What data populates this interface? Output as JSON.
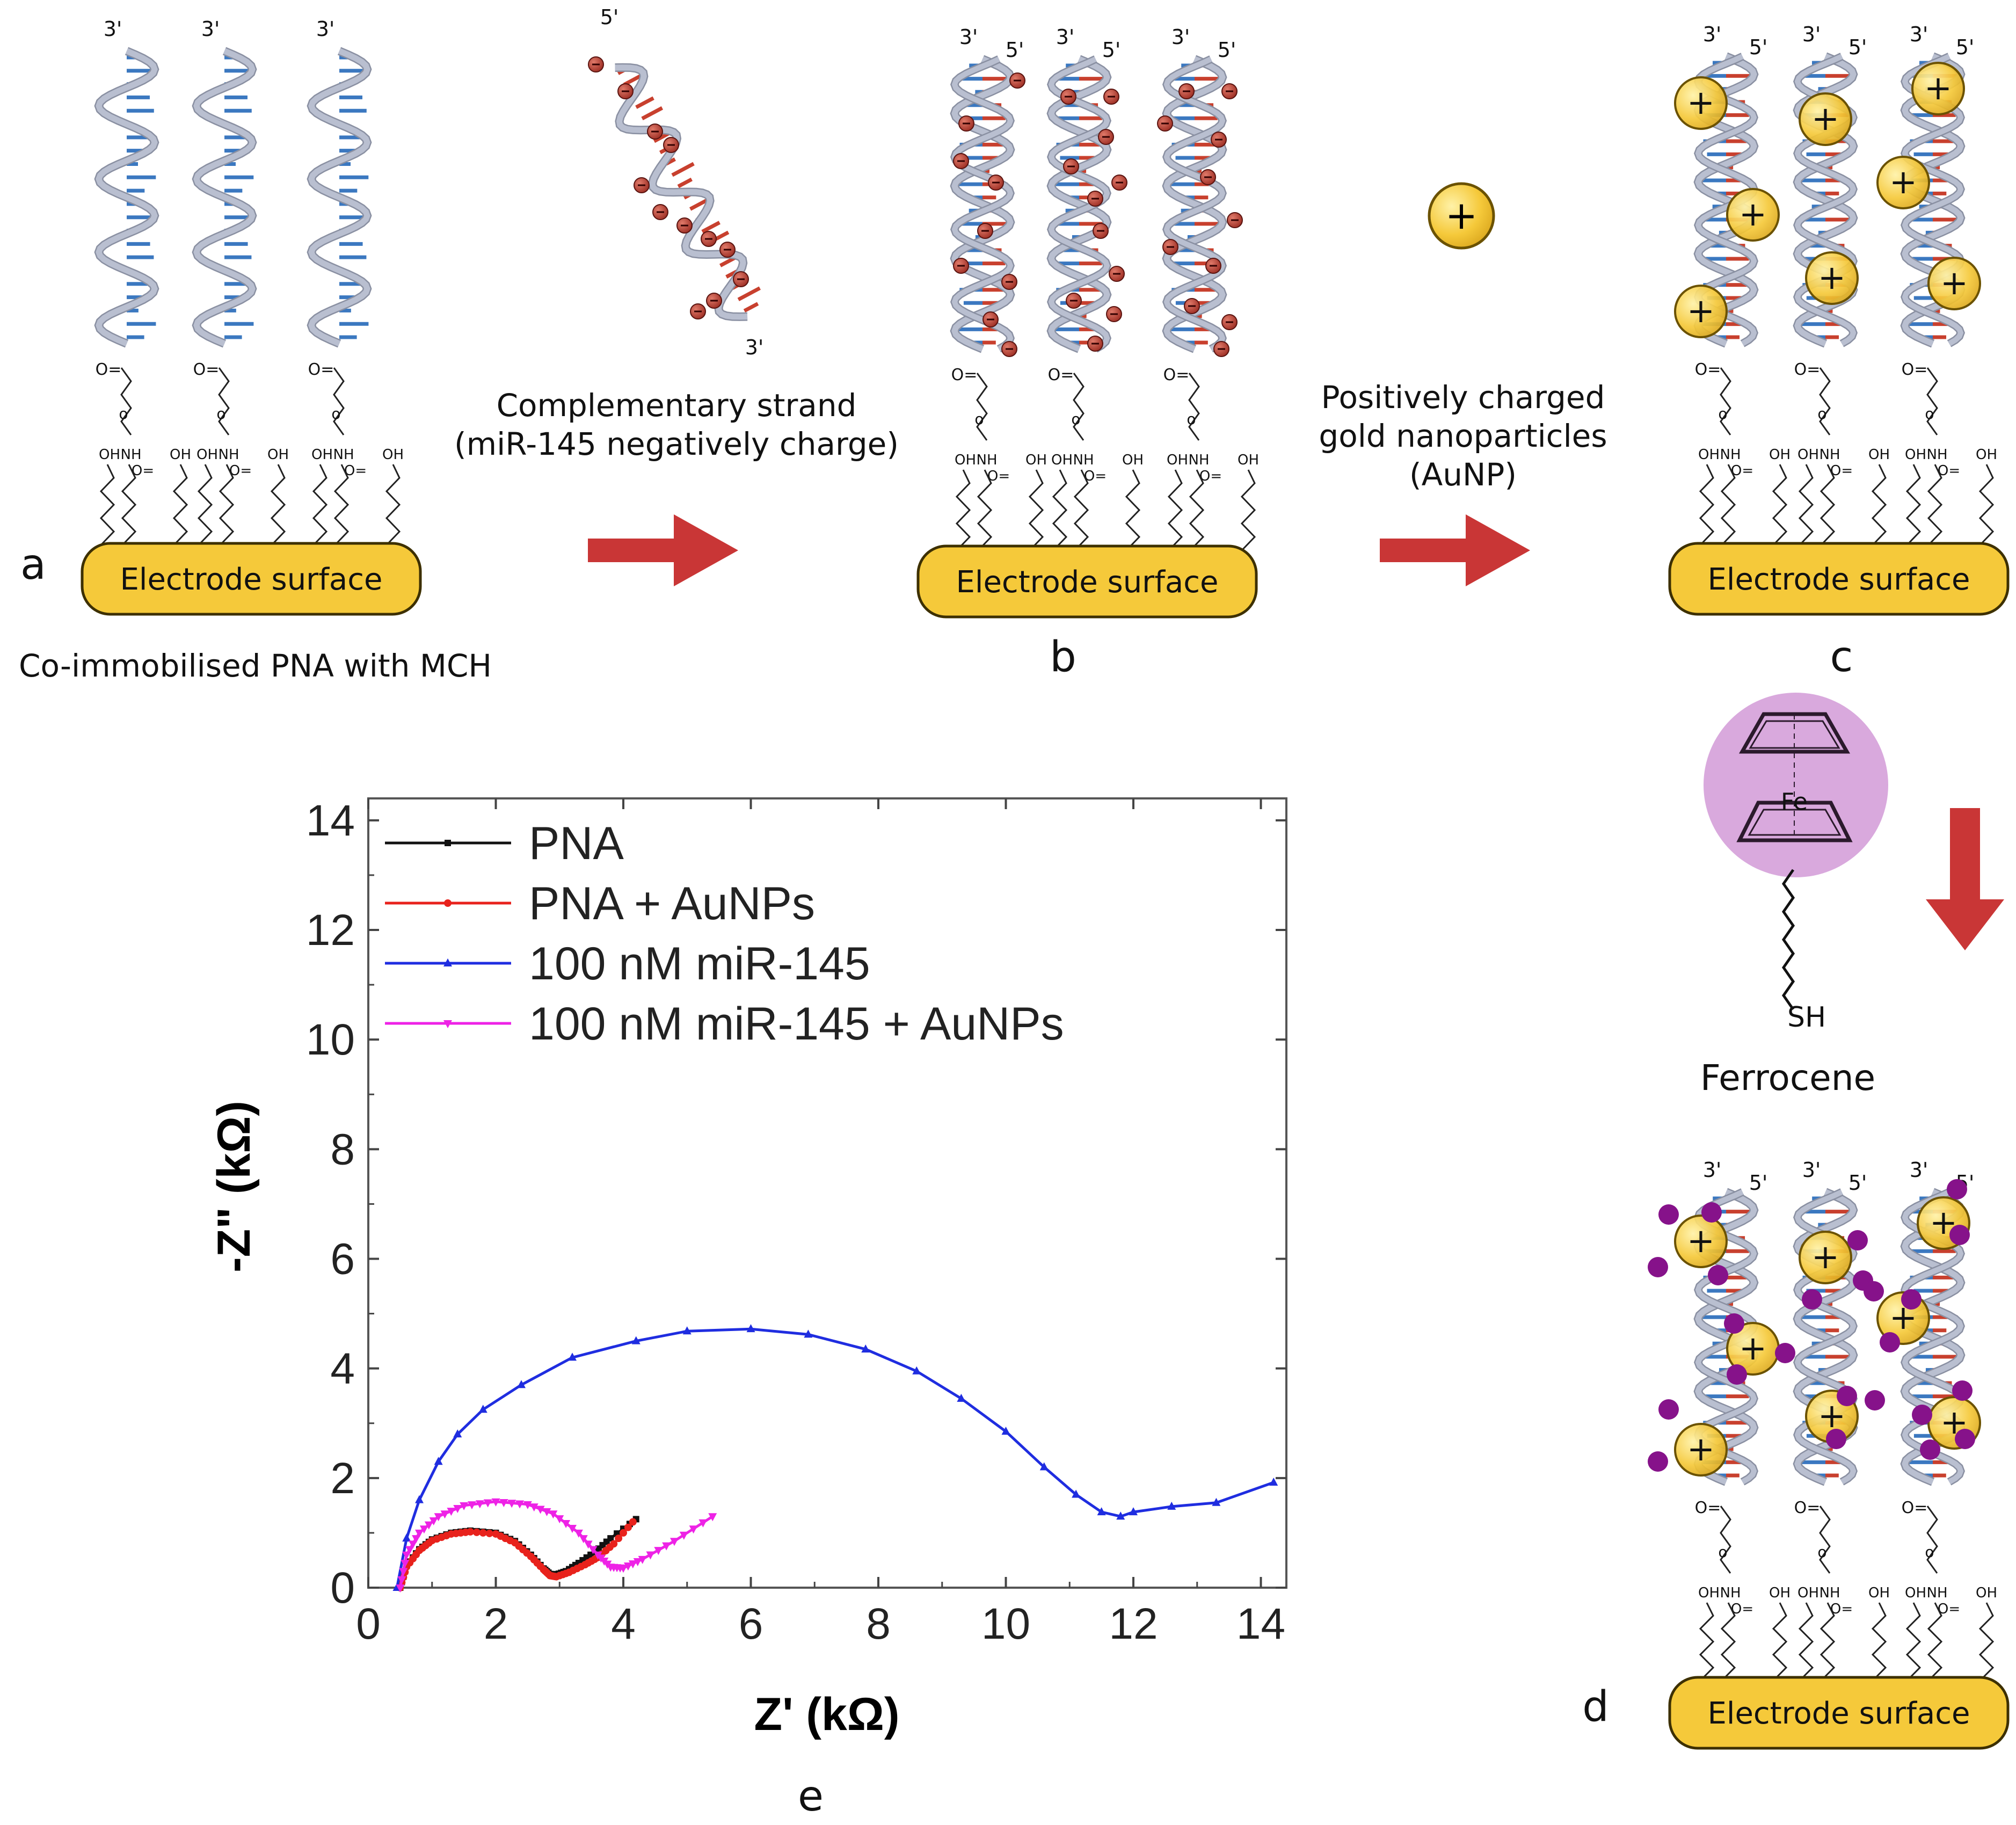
{
  "panels": {
    "a": {
      "letter": "a",
      "caption": "Co-immobilised PNA with MCH",
      "electrode": "Electrode surface"
    },
    "b": {
      "letter": "b",
      "electrode": "Electrode surface"
    },
    "c": {
      "letter": "c",
      "electrode": "Electrode surface"
    },
    "d": {
      "letter": "d",
      "electrode": "Electrode surface"
    },
    "e": {
      "letter": "e"
    }
  },
  "labels": {
    "three_prime": "3'",
    "five_prime": "5'",
    "oh": "OH",
    "nh": "NH",
    "carbonyl": "O="
  },
  "steps": {
    "complementary": {
      "line1": "Complementary strand",
      "line2": "(miR-145 negatively charge)"
    },
    "aunp": {
      "line1": "Positively charged",
      "line2": "gold nanoparticles",
      "line3": "(AuNP)"
    },
    "ferrocene": {
      "label": "Ferrocene",
      "fe": "Fe",
      "sh": "SH"
    }
  },
  "symbols": {
    "plus": "+",
    "minus": "−"
  },
  "colors": {
    "gold": "#f5c93a",
    "gold_edge": "#6b5200",
    "arrow": "#c93636",
    "negative_charge": "#b3372c",
    "ferrocene_dot": "#86128a",
    "ferrocene_halo": "#d9a9dd",
    "backbone": "#b9bfd0",
    "base_blue": "#3b78c0",
    "base_red": "#c8402e"
  },
  "chart_data": {
    "type": "line",
    "title": "",
    "xlabel": "Z' (kΩ)",
    "ylabel": "-Z\" (kΩ)",
    "xlim": [
      0,
      14.4
    ],
    "ylim": [
      0,
      14.4
    ],
    "xticks": [
      0,
      2,
      4,
      6,
      8,
      10,
      12,
      14
    ],
    "yticks": [
      0,
      2,
      4,
      6,
      8,
      10,
      12,
      14
    ],
    "legend_position": "top-left",
    "series": [
      {
        "name": "PNA",
        "color": "#111111",
        "marker": "square",
        "x": [
          0.5,
          0.6,
          0.8,
          1.0,
          1.3,
          1.6,
          2.0,
          2.3,
          2.55,
          2.75,
          2.85,
          2.95,
          3.1,
          3.3,
          3.55,
          3.8,
          4.2
        ],
        "y": [
          0.0,
          0.4,
          0.7,
          0.88,
          1.0,
          1.04,
          1.0,
          0.85,
          0.6,
          0.35,
          0.25,
          0.24,
          0.3,
          0.45,
          0.65,
          0.9,
          1.25
        ]
      },
      {
        "name": "PNA + AuNPs",
        "color": "#e8221c",
        "marker": "circle",
        "x": [
          0.5,
          0.6,
          0.8,
          1.0,
          1.3,
          1.6,
          2.0,
          2.3,
          2.55,
          2.75,
          2.85,
          2.95,
          3.15,
          3.4,
          3.6,
          3.85,
          4.15
        ],
        "y": [
          0.0,
          0.38,
          0.68,
          0.86,
          0.98,
          1.02,
          0.98,
          0.82,
          0.57,
          0.33,
          0.22,
          0.2,
          0.28,
          0.42,
          0.55,
          0.8,
          1.2
        ]
      },
      {
        "name": "100 nM miR-145",
        "color": "#1f2de0",
        "marker": "triangle",
        "x": [
          0.45,
          0.6,
          0.8,
          1.1,
          1.4,
          1.8,
          2.4,
          3.2,
          4.2,
          5.0,
          6.0,
          6.9,
          7.8,
          8.6,
          9.3,
          10.0,
          10.6,
          11.1,
          11.5,
          11.8,
          12.0,
          12.6,
          13.3,
          14.2
        ],
        "y": [
          0.0,
          0.9,
          1.6,
          2.3,
          2.8,
          3.25,
          3.7,
          4.2,
          4.5,
          4.68,
          4.72,
          4.62,
          4.35,
          3.95,
          3.45,
          2.85,
          2.2,
          1.7,
          1.38,
          1.3,
          1.38,
          1.48,
          1.55,
          1.92
        ]
      },
      {
        "name": "100 nM miR-145 + AuNPs",
        "color": "#ee22e6",
        "marker": "down-triangle",
        "x": [
          0.5,
          0.6,
          0.8,
          1.1,
          1.5,
          2.0,
          2.5,
          2.9,
          3.3,
          3.6,
          3.8,
          4.0,
          4.3,
          4.8,
          5.4
        ],
        "y": [
          0.0,
          0.6,
          1.0,
          1.3,
          1.5,
          1.57,
          1.52,
          1.35,
          1.0,
          0.6,
          0.38,
          0.36,
          0.52,
          0.85,
          1.3
        ]
      }
    ]
  }
}
